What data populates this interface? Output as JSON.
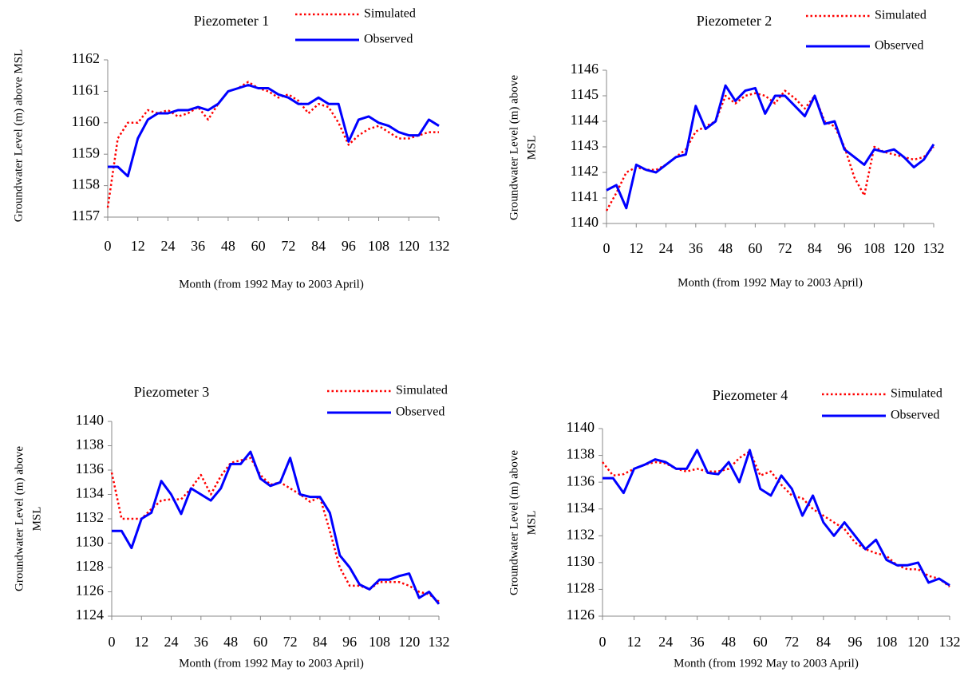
{
  "chart_data": [
    {
      "type": "line",
      "title": "Piezometer 1",
      "x_label": "Month (from 1992 May to 2003 April)",
      "y_label": "Groundwater Level (m) above MSL",
      "x": [
        0,
        4,
        8,
        12,
        16,
        20,
        24,
        28,
        32,
        36,
        40,
        44,
        48,
        52,
        56,
        60,
        64,
        68,
        72,
        76,
        80,
        84,
        88,
        92,
        96,
        100,
        104,
        108,
        112,
        116,
        120,
        124,
        128,
        132
      ],
      "series": [
        {
          "name": "Simulated",
          "color": "#ff0000",
          "style": "dotted",
          "values": [
            1157.3,
            1159.5,
            1160.0,
            1160.0,
            1160.4,
            1160.3,
            1160.4,
            1160.2,
            1160.3,
            1160.5,
            1160.1,
            1160.6,
            1161.0,
            1161.1,
            1161.3,
            1161.1,
            1161.0,
            1160.8,
            1160.9,
            1160.7,
            1160.3,
            1160.6,
            1160.5,
            1160.0,
            1159.3,
            1159.6,
            1159.8,
            1159.9,
            1159.7,
            1159.5,
            1159.5,
            1159.6,
            1159.7,
            1159.7
          ]
        },
        {
          "name": "Observed",
          "color": "#0000ff",
          "style": "solid",
          "values": [
            1158.6,
            1158.6,
            1158.3,
            1159.5,
            1160.1,
            1160.3,
            1160.3,
            1160.4,
            1160.4,
            1160.5,
            1160.4,
            1160.6,
            1161.0,
            1161.1,
            1161.2,
            1161.1,
            1161.1,
            1160.9,
            1160.8,
            1160.6,
            1160.6,
            1160.8,
            1160.6,
            1160.6,
            1159.4,
            1160.1,
            1160.2,
            1160.0,
            1159.9,
            1159.7,
            1159.6,
            1159.6,
            1160.1,
            1159.9
          ]
        }
      ],
      "xlim": [
        0,
        132
      ],
      "xticks": [
        0,
        12,
        24,
        36,
        48,
        60,
        72,
        84,
        96,
        108,
        120,
        132
      ],
      "ylim": [
        1157,
        1162
      ],
      "yticks": [
        1157,
        1158,
        1159,
        1160,
        1161,
        1162
      ],
      "grid": false
    },
    {
      "type": "line",
      "title": "Piezometer 2",
      "x_label": "Month (from 1992 May to 2003 April)",
      "y_label": [
        "Groundwater Level (m) above",
        "MSL"
      ],
      "x": [
        0,
        4,
        8,
        12,
        16,
        20,
        24,
        28,
        32,
        36,
        40,
        44,
        48,
        52,
        56,
        60,
        64,
        68,
        72,
        76,
        80,
        84,
        88,
        92,
        96,
        100,
        104,
        108,
        112,
        116,
        120,
        124,
        128,
        132
      ],
      "series": [
        {
          "name": "Simulated",
          "color": "#ff0000",
          "style": "dotted",
          "values": [
            1140.5,
            1141.2,
            1142.0,
            1142.2,
            1142.1,
            1142.1,
            1142.3,
            1142.6,
            1142.9,
            1143.6,
            1143.8,
            1144.0,
            1145.0,
            1144.7,
            1145.0,
            1145.1,
            1145.0,
            1144.7,
            1145.2,
            1144.9,
            1144.5,
            1145.0,
            1144.0,
            1143.8,
            1143.0,
            1141.8,
            1141.1,
            1143.0,
            1142.8,
            1142.7,
            1142.6,
            1142.5,
            1142.6,
            1143.0
          ]
        },
        {
          "name": "Observed",
          "color": "#0000ff",
          "style": "solid",
          "values": [
            1141.3,
            1141.5,
            1140.6,
            1142.3,
            1142.1,
            1142.0,
            1142.3,
            1142.6,
            1142.7,
            1144.6,
            1143.7,
            1144.0,
            1145.4,
            1144.8,
            1145.2,
            1145.3,
            1144.3,
            1145.0,
            1145.0,
            1144.6,
            1144.2,
            1145.0,
            1143.9,
            1144.0,
            1142.9,
            1142.6,
            1142.3,
            1142.9,
            1142.8,
            1142.9,
            1142.6,
            1142.2,
            1142.5,
            1143.1
          ]
        }
      ],
      "xlim": [
        0,
        132
      ],
      "xticks": [
        0,
        12,
        24,
        36,
        48,
        60,
        72,
        84,
        96,
        108,
        120,
        132
      ],
      "ylim": [
        1140,
        1146
      ],
      "yticks": [
        1140,
        1141,
        1142,
        1143,
        1144,
        1145,
        1146
      ],
      "grid": false
    },
    {
      "type": "line",
      "title": "Piezometer 3",
      "x_label": "Month (from 1992 May to 2003 April)",
      "y_label": [
        "Groundwater Level (m) above",
        "MSL"
      ],
      "x": [
        0,
        4,
        8,
        12,
        16,
        20,
        24,
        28,
        32,
        36,
        40,
        44,
        48,
        52,
        56,
        60,
        64,
        68,
        72,
        76,
        80,
        84,
        88,
        92,
        96,
        100,
        104,
        108,
        112,
        116,
        120,
        124,
        128,
        132
      ],
      "series": [
        {
          "name": "Simulated",
          "color": "#ff0000",
          "style": "dotted",
          "values": [
            1135.8,
            1132.0,
            1132.0,
            1132.0,
            1132.8,
            1133.5,
            1133.6,
            1133.6,
            1134.5,
            1135.6,
            1134.0,
            1135.5,
            1136.6,
            1136.8,
            1137.0,
            1135.6,
            1134.8,
            1135.0,
            1134.5,
            1134.0,
            1133.4,
            1133.8,
            1131.0,
            1128.0,
            1126.5,
            1126.5,
            1126.2,
            1126.8,
            1126.8,
            1126.8,
            1126.5,
            1126.0,
            1125.8,
            1125.2
          ]
        },
        {
          "name": "Observed",
          "color": "#0000ff",
          "style": "solid",
          "values": [
            1131.0,
            1131.0,
            1129.6,
            1132.0,
            1132.5,
            1135.1,
            1134.0,
            1132.4,
            1134.5,
            1134.0,
            1133.5,
            1134.5,
            1136.5,
            1136.5,
            1137.5,
            1135.3,
            1134.7,
            1135.0,
            1137.0,
            1134.0,
            1133.8,
            1133.8,
            1132.5,
            1129.0,
            1128.0,
            1126.6,
            1126.2,
            1127.0,
            1127.0,
            1127.3,
            1127.5,
            1125.5,
            1126.0,
            1125.0
          ]
        }
      ],
      "xlim": [
        0,
        132
      ],
      "xticks": [
        0,
        12,
        24,
        36,
        48,
        60,
        72,
        84,
        96,
        108,
        120,
        132
      ],
      "ylim": [
        1124,
        1140
      ],
      "yticks": [
        1124,
        1126,
        1128,
        1130,
        1132,
        1134,
        1136,
        1138,
        1140
      ],
      "grid": false
    },
    {
      "type": "line",
      "title": "Piezometer 4",
      "x_label": "Month (from 1992 May to 2003 April)",
      "y_label": [
        "Groundwater Level (m) above",
        "MSL"
      ],
      "x": [
        0,
        4,
        8,
        12,
        16,
        20,
        24,
        28,
        32,
        36,
        40,
        44,
        48,
        52,
        56,
        60,
        64,
        68,
        72,
        76,
        80,
        84,
        88,
        92,
        96,
        100,
        104,
        108,
        112,
        116,
        120,
        124,
        128,
        132
      ],
      "series": [
        {
          "name": "Simulated",
          "color": "#ff0000",
          "style": "dotted",
          "values": [
            1137.5,
            1136.5,
            1136.6,
            1137.0,
            1137.3,
            1137.5,
            1137.4,
            1137.0,
            1136.8,
            1137.0,
            1136.8,
            1136.8,
            1137.0,
            1137.8,
            1138.3,
            1136.5,
            1136.8,
            1135.8,
            1135.0,
            1134.8,
            1134.0,
            1133.5,
            1133.0,
            1132.5,
            1131.5,
            1131.0,
            1130.7,
            1130.5,
            1129.8,
            1129.5,
            1129.5,
            1129.0,
            1128.8,
            1128.2
          ]
        },
        {
          "name": "Observed",
          "color": "#0000ff",
          "style": "solid",
          "values": [
            1136.3,
            1136.3,
            1135.2,
            1137.0,
            1137.3,
            1137.7,
            1137.5,
            1137.0,
            1137.0,
            1138.4,
            1136.7,
            1136.6,
            1137.5,
            1136.0,
            1138.4,
            1135.5,
            1135.0,
            1136.5,
            1135.5,
            1133.5,
            1135.0,
            1133.0,
            1132.0,
            1133.0,
            1132.0,
            1131.0,
            1131.7,
            1130.2,
            1129.8,
            1129.8,
            1130.0,
            1128.5,
            1128.8,
            1128.3
          ]
        }
      ],
      "xlim": [
        0,
        132
      ],
      "xticks": [
        0,
        12,
        24,
        36,
        48,
        60,
        72,
        84,
        96,
        108,
        120,
        132
      ],
      "ylim": [
        1126,
        1140
      ],
      "yticks": [
        1126,
        1128,
        1130,
        1132,
        1134,
        1136,
        1138,
        1140
      ],
      "grid": false
    }
  ]
}
